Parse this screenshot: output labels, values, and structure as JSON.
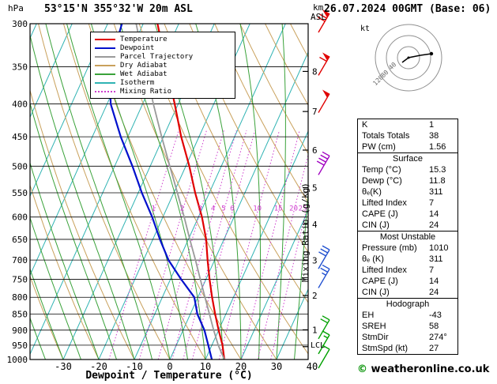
{
  "header": {
    "station": "53°15'N 355°32'W 20m ASL",
    "datetime": "26.07.2024 00GMT (Base: 06)"
  },
  "axes": {
    "pressure_unit": "hPa",
    "km_unit": "km",
    "asl_unit": "ASL",
    "x_title": "Dewpoint / Temperature (°C)",
    "mixing_ratio_title": "Mixing Ratio (g/kg)",
    "lcl_label": "LCL",
    "pressure_ticks": [
      300,
      350,
      400,
      450,
      500,
      550,
      600,
      650,
      700,
      750,
      800,
      850,
      900,
      950,
      1000
    ],
    "temp_ticks": [
      -30,
      -20,
      -10,
      0,
      10,
      20,
      30,
      40
    ],
    "km_ticks": [
      1,
      2,
      3,
      4,
      5,
      6,
      7,
      8
    ]
  },
  "legend": [
    {
      "label": "Temperature",
      "color": "#e00000",
      "dash": "solid"
    },
    {
      "label": "Dewpoint",
      "color": "#0010cc",
      "dash": "solid"
    },
    {
      "label": "Parcel Trajectory",
      "color": "#9a9a9a",
      "dash": "solid"
    },
    {
      "label": "Dry Adiabat",
      "color": "#c9a15c",
      "dash": "solid"
    },
    {
      "label": "Wet Adiabat",
      "color": "#3aa23a",
      "dash": "solid"
    },
    {
      "label": "Isotherm",
      "color": "#2fb3b3",
      "dash": "solid"
    },
    {
      "label": "Mixing Ratio",
      "color": "#cf3fcf",
      "dash": "dotted"
    }
  ],
  "chart_data": {
    "type": "line",
    "subtype": "skew-t log-p sounding",
    "title": "53°15'N 355°32'W 20m ASL",
    "x_axis_label": "Dewpoint / Temperature (°C)",
    "pressure_axis_range_hpa": [
      1000,
      300
    ],
    "temp_axis_range_c": [
      -39,
      39
    ],
    "grid": "skew-t background (isotherms, dry/wet adiabats, mixing ratio lines)",
    "pressure_hpa": [
      1000,
      950,
      900,
      850,
      800,
      750,
      700,
      650,
      600,
      550,
      500,
      450,
      400,
      350,
      300
    ],
    "series": [
      {
        "name": "Temperature",
        "color": "#e00000",
        "values_c": [
          15.3,
          13,
          10,
          7,
          4,
          1,
          -2,
          -5,
          -9,
          -14,
          -19,
          -25,
          -31,
          -38,
          -46
        ]
      },
      {
        "name": "Dewpoint",
        "color": "#0010cc",
        "values_c": [
          11.8,
          9,
          6,
          2,
          -1,
          -7,
          -13,
          -18,
          -23,
          -29,
          -35,
          -42,
          -49,
          -54,
          -56
        ]
      },
      {
        "name": "Parcel Trajectory",
        "color": "#9a9a9a",
        "values_c": [
          15.3,
          11.8,
          8.6,
          5.4,
          2,
          -1.6,
          -5.4,
          -9.6,
          -14,
          -19,
          -24.5,
          -30.5,
          -37,
          -44,
          -52
        ]
      }
    ],
    "mixing_ratio_lines_gkg": [
      1,
      2,
      3,
      4,
      5,
      6,
      10,
      15,
      20,
      25
    ],
    "isotherm_step_c": 10,
    "lcl_pressure_hpa": 955
  },
  "wind_barbs": [
    {
      "pressure_hpa": 300,
      "speed_kt": 70,
      "color": "#e00000"
    },
    {
      "pressure_hpa": 350,
      "speed_kt": 60,
      "color": "#e00000"
    },
    {
      "pressure_hpa": 400,
      "speed_kt": 50,
      "color": "#e00000"
    },
    {
      "pressure_hpa": 500,
      "speed_kt": 40,
      "color": "#a000c0"
    },
    {
      "pressure_hpa": 700,
      "speed_kt": 30,
      "color": "#2050d0"
    },
    {
      "pressure_hpa": 750,
      "speed_kt": 25,
      "color": "#2050d0"
    },
    {
      "pressure_hpa": 900,
      "speed_kt": 20,
      "color": "#00a000"
    },
    {
      "pressure_hpa": 950,
      "speed_kt": 15,
      "color": "#00a000"
    },
    {
      "pressure_hpa": 1000,
      "speed_kt": 10,
      "color": "#00a000"
    }
  ],
  "hodograph": {
    "unit": "kt",
    "rings_kt": [
      40,
      80,
      120
    ],
    "ring_labels": [
      "40",
      "80",
      "120"
    ]
  },
  "panel": {
    "top_rows": [
      {
        "label": "K",
        "value": "1"
      },
      {
        "label": "Totals Totals",
        "value": "38"
      },
      {
        "label": "PW (cm)",
        "value": "1.56"
      }
    ],
    "sections": [
      {
        "title": "Surface",
        "rows": [
          {
            "label": "Temp (°C)",
            "value": "15.3"
          },
          {
            "label": "Dewp (°C)",
            "value": "11.8"
          },
          {
            "label": "θₑ(K)",
            "value": "311"
          },
          {
            "label": "Lifted Index",
            "value": "7"
          },
          {
            "label": "CAPE (J)",
            "value": "14"
          },
          {
            "label": "CIN (J)",
            "value": "24"
          }
        ]
      },
      {
        "title": "Most Unstable",
        "rows": [
          {
            "label": "Pressure (mb)",
            "value": "1010"
          },
          {
            "label": "θₑ (K)",
            "value": "311"
          },
          {
            "label": "Lifted Index",
            "value": "7"
          },
          {
            "label": "CAPE (J)",
            "value": "14"
          },
          {
            "label": "CIN (J)",
            "value": "24"
          }
        ]
      },
      {
        "title": "Hodograph",
        "rows": [
          {
            "label": "EH",
            "value": "-43"
          },
          {
            "label": "SREH",
            "value": "58"
          },
          {
            "label": "StmDir",
            "value": "274°"
          },
          {
            "label": "StmSpd (kt)",
            "value": "27"
          }
        ]
      }
    ]
  },
  "footer": {
    "copyright_symbol": "©",
    "copyright_text": "weatheronline.co.uk"
  }
}
